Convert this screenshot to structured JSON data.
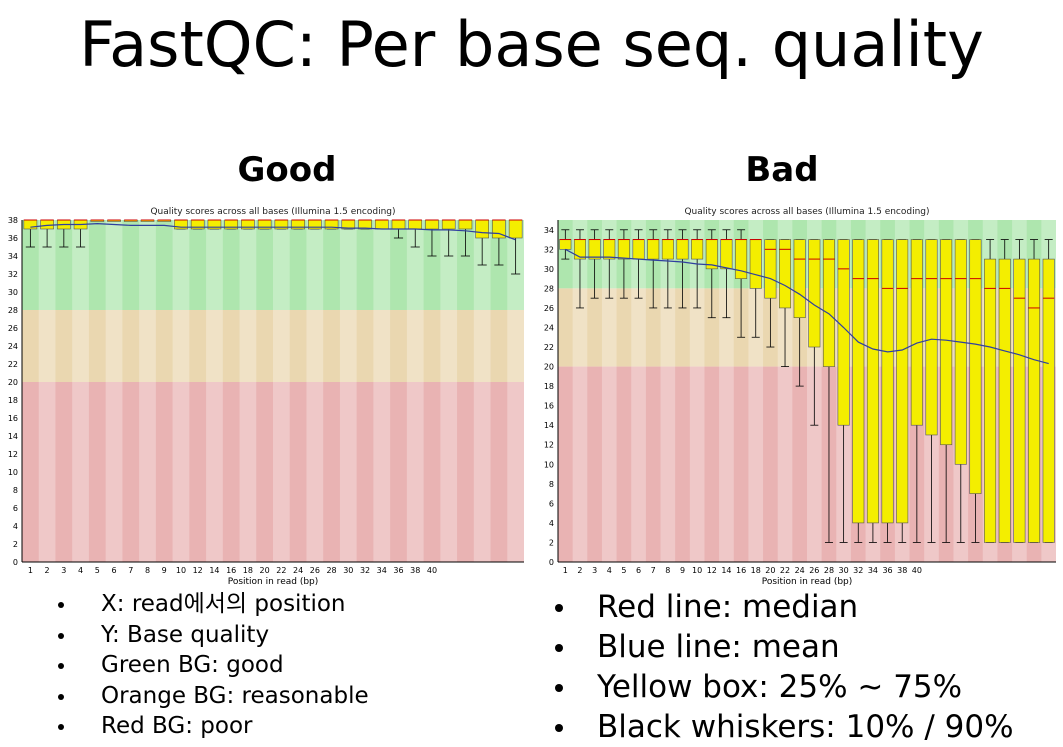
{
  "title": "FastQC: Per base seq. quality",
  "panels": [
    {
      "heading": "Good"
    },
    {
      "heading": "Bad"
    }
  ],
  "bullets_left": [
    "X: read에서의 position",
    "Y: Base quality",
    "Green BG: good",
    "Orange BG: reasonable",
    "Red BG: poor"
  ],
  "bullets_right": [
    "Red line: median",
    "Blue line: mean",
    "Yellow box: 25% ~ 75%",
    "Black whiskers: 10% / 90%"
  ],
  "colors": {
    "good_bg": "#aee6ae",
    "reasonable_bg": "#ead7b0",
    "poor_bg": "#e9b3b3",
    "box": "#f4ee00",
    "median": "#cc0000",
    "mean": "#2f3f9f",
    "whisker": "#000000"
  },
  "chart_data": [
    {
      "type": "box",
      "title": "Quality scores across all bases (Illumina 1.5 encoding)",
      "xlabel": "Position in read (bp)",
      "ylabel": "",
      "ylim": [
        0,
        38
      ],
      "yticks": [
        0,
        2,
        4,
        6,
        8,
        10,
        12,
        14,
        16,
        18,
        20,
        22,
        24,
        26,
        28,
        30,
        32,
        34,
        36,
        38
      ],
      "xticks": [
        "1",
        "2",
        "3",
        "4",
        "5",
        "6",
        "7",
        "8",
        "9",
        "10",
        "12",
        "14",
        "16",
        "18",
        "20",
        "22",
        "24",
        "26",
        "28",
        "30",
        "32",
        "34",
        "36",
        "38",
        "40"
      ],
      "zones": [
        {
          "name": "good",
          "range": [
            28,
            38
          ]
        },
        {
          "name": "reasonable",
          "range": [
            20,
            28
          ]
        },
        {
          "name": "poor",
          "range": [
            0,
            20
          ]
        }
      ],
      "series": [
        {
          "name": "Q1",
          "values": [
            37,
            37,
            37,
            37,
            38,
            38,
            38,
            38,
            38,
            37,
            37,
            37,
            37,
            37,
            37,
            37,
            37,
            37,
            37,
            37,
            37,
            37,
            37,
            37,
            37,
            37,
            37,
            36,
            36,
            36
          ]
        },
        {
          "name": "Q3",
          "values": [
            38,
            38,
            38,
            38,
            38,
            38,
            38,
            38,
            38,
            38,
            38,
            38,
            38,
            38,
            38,
            38,
            38,
            38,
            38,
            38,
            38,
            38,
            38,
            38,
            38,
            38,
            38,
            38,
            38,
            38
          ]
        },
        {
          "name": "Median",
          "values": [
            38,
            38,
            38,
            38,
            38,
            38,
            38,
            38,
            38,
            38,
            38,
            38,
            38,
            38,
            38,
            38,
            38,
            38,
            38,
            38,
            38,
            38,
            38,
            38,
            38,
            38,
            38,
            38,
            38,
            38
          ]
        },
        {
          "name": "P10",
          "values": [
            35,
            35,
            35,
            35,
            38,
            38,
            38,
            38,
            38,
            37,
            37,
            37,
            37,
            37,
            37,
            37,
            37,
            37,
            37,
            37,
            37,
            37,
            36,
            35,
            34,
            34,
            34,
            33,
            33,
            32
          ]
        },
        {
          "name": "P90",
          "values": [
            38,
            38,
            38,
            38,
            38,
            38,
            38,
            38,
            38,
            38,
            38,
            38,
            38,
            38,
            38,
            38,
            38,
            38,
            38,
            38,
            38,
            38,
            38,
            38,
            38,
            38,
            38,
            38,
            38,
            38
          ]
        },
        {
          "name": "Mean",
          "values": [
            37.2,
            37.4,
            37.5,
            37.5,
            37.6,
            37.5,
            37.4,
            37.4,
            37.4,
            37.2,
            37.2,
            37.2,
            37.2,
            37.2,
            37.2,
            37.2,
            37.2,
            37.2,
            37.2,
            37.1,
            37.1,
            37.0,
            37.0,
            37.0,
            36.9,
            36.9,
            36.8,
            36.6,
            36.5,
            35.8
          ]
        }
      ]
    },
    {
      "type": "box",
      "title": "Quality scores across all bases (Illumina 1.5 encoding)",
      "xlabel": "Position in read (bp)",
      "ylabel": "",
      "ylim": [
        0,
        35
      ],
      "yticks": [
        0,
        2,
        4,
        6,
        8,
        10,
        12,
        14,
        16,
        18,
        20,
        22,
        24,
        26,
        28,
        30,
        32,
        34
      ],
      "xticks": [
        "1",
        "2",
        "3",
        "4",
        "5",
        "6",
        "7",
        "8",
        "9",
        "10",
        "12",
        "14",
        "16",
        "18",
        "20",
        "22",
        "24",
        "26",
        "28",
        "30",
        "32",
        "34",
        "36",
        "38",
        "40"
      ],
      "zones": [
        {
          "name": "good",
          "range": [
            28,
            35
          ]
        },
        {
          "name": "reasonable",
          "range": [
            20,
            28
          ]
        },
        {
          "name": "poor",
          "range": [
            0,
            20
          ]
        }
      ],
      "series": [
        {
          "name": "Q1",
          "values": [
            32,
            31,
            31,
            31,
            31,
            31,
            31,
            31,
            31,
            31,
            30,
            30,
            29,
            28,
            27,
            26,
            25,
            22,
            20,
            14,
            4,
            4,
            4,
            4,
            14,
            13,
            12,
            10,
            7,
            2,
            2,
            2,
            2,
            2
          ]
        },
        {
          "name": "Q3",
          "values": [
            33,
            33,
            33,
            33,
            33,
            33,
            33,
            33,
            33,
            33,
            33,
            33,
            33,
            33,
            33,
            33,
            33,
            33,
            33,
            33,
            33,
            33,
            33,
            33,
            33,
            33,
            33,
            33,
            33,
            31,
            31,
            31,
            31,
            31
          ]
        },
        {
          "name": "Median",
          "values": [
            33,
            33,
            33,
            33,
            33,
            33,
            33,
            33,
            33,
            33,
            33,
            33,
            33,
            33,
            32,
            32,
            31,
            31,
            31,
            30,
            29,
            29,
            28,
            28,
            29,
            29,
            29,
            29,
            29,
            28,
            28,
            27,
            26,
            27
          ]
        },
        {
          "name": "P10",
          "values": [
            31,
            26,
            27,
            27,
            27,
            27,
            26,
            26,
            26,
            26,
            25,
            25,
            23,
            23,
            22,
            20,
            18,
            14,
            2,
            2,
            2,
            2,
            2,
            2,
            2,
            2,
            2,
            2,
            2,
            2,
            2,
            2,
            2,
            2
          ]
        },
        {
          "name": "P90",
          "values": [
            34,
            34,
            34,
            34,
            34,
            34,
            34,
            34,
            34,
            34,
            34,
            34,
            34,
            33,
            33,
            33,
            33,
            33,
            33,
            33,
            33,
            33,
            33,
            33,
            33,
            33,
            33,
            33,
            33,
            33,
            33,
            33,
            33,
            33
          ]
        },
        {
          "name": "Mean",
          "values": [
            32,
            31.2,
            31.2,
            31.2,
            31.1,
            31.0,
            30.9,
            30.8,
            30.7,
            30.5,
            30.4,
            30.1,
            29.8,
            29.4,
            29.0,
            28.3,
            27.4,
            26.3,
            25.4,
            24.0,
            22.5,
            21.8,
            21.5,
            21.7,
            22.4,
            22.8,
            22.7,
            22.5,
            22.3,
            22.0,
            21.6,
            21.2,
            20.7,
            20.3
          ]
        }
      ]
    }
  ]
}
